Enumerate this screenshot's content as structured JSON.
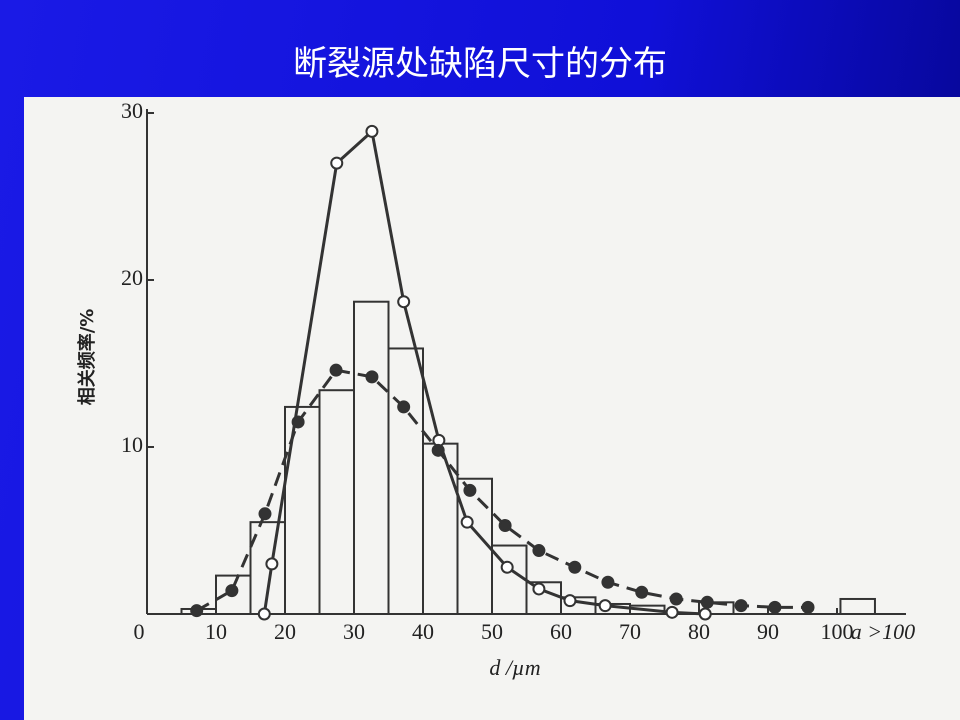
{
  "chart_data": {
    "type": "histogram",
    "title": "断裂源处缺陷尺寸的分布",
    "xlabel": "d /µm",
    "ylabel": "相关频率/%",
    "bins": [
      5,
      10,
      15,
      20,
      25,
      30,
      35,
      40,
      45,
      50,
      55,
      60,
      65,
      70,
      75,
      80,
      85
    ],
    "counts": [
      0.3,
      2.3,
      5.5,
      12.4,
      13.4,
      18.7,
      15.9,
      10.2,
      8.1,
      4.1,
      1.9,
      1.0,
      0.6,
      0.5,
      0,
      0.7
    ],
    "overflow": {
      "label": "a >100",
      "value": 0.9
    },
    "series": [
      {
        "style": "solid-open",
        "color": "#333333",
        "x": [
          17,
          18.1,
          27.5,
          32.6,
          37.2,
          42.3,
          46.4,
          52.2,
          56.8,
          61.3,
          66.4,
          76.1,
          80.9
        ],
        "values": [
          0,
          3.0,
          27,
          28.9,
          18.7,
          10.4,
          5.5,
          2.8,
          1.5,
          0.8,
          0.5,
          0.1,
          0
        ]
      },
      {
        "style": "dashed-filled",
        "color": "#333333",
        "x": [
          7.2,
          12.3,
          17.1,
          21.9,
          27.4,
          32.6,
          37.2,
          42.2,
          46.8,
          51.9,
          56.8,
          62.0,
          66.8,
          71.7,
          76.7,
          81.2,
          86.1,
          91.0,
          95.8
        ],
        "values": [
          0.2,
          1.4,
          6.0,
          11.5,
          14.6,
          14.2,
          12.4,
          9.8,
          7.4,
          5.3,
          3.8,
          2.8,
          1.9,
          1.3,
          0.9,
          0.7,
          0.5,
          0.4,
          0.4
        ]
      }
    ],
    "xlim": [
      0,
      110
    ],
    "ylim": [
      0,
      30
    ],
    "xticks": [
      0,
      10,
      20,
      30,
      40,
      50,
      60,
      70,
      80,
      90,
      100
    ],
    "yticks": [
      10,
      20,
      30
    ]
  }
}
